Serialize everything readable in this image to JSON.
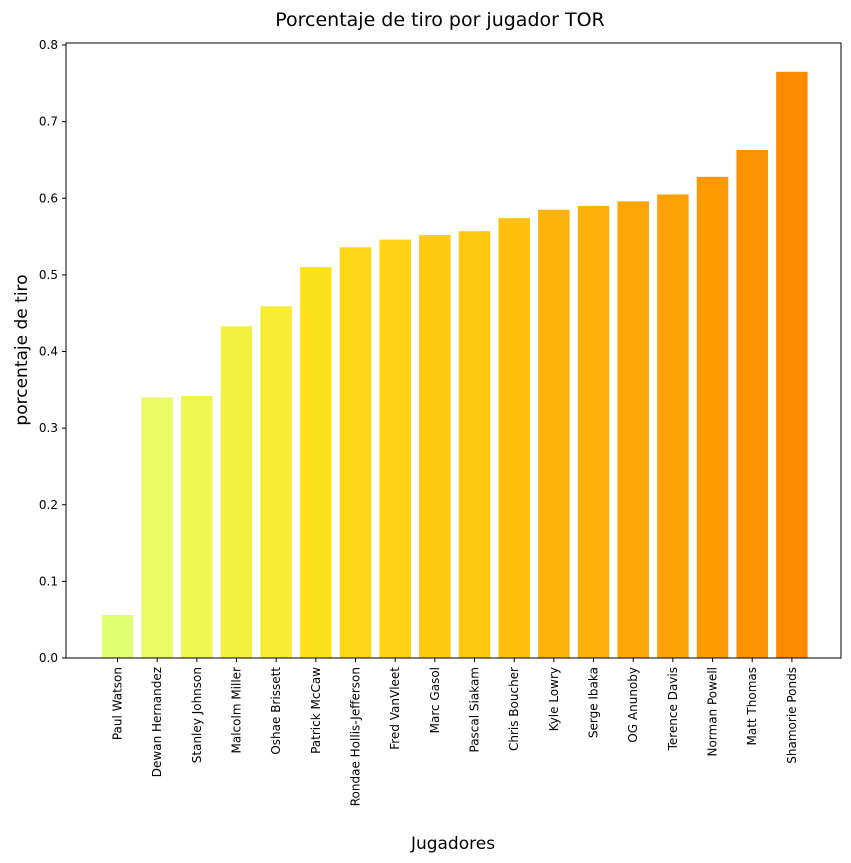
{
  "chart_data": {
    "type": "bar",
    "title": "Porcentaje de tiro por jugador TOR",
    "xlabel": "Jugadores",
    "ylabel": "porcentaje de tiro",
    "ylim": [
      0,
      0.8
    ],
    "yticks": [
      "0.0",
      "0.1",
      "0.2",
      "0.3",
      "0.4",
      "0.5",
      "0.6",
      "0.7",
      "0.8"
    ],
    "grid": false,
    "categories": [
      "Paul Watson",
      "Dewan Hernandez",
      "Stanley Johnson",
      "Malcolm Miller",
      "Oshae Brissett",
      "Patrick McCaw",
      "Rondae Hollis-Jefferson",
      "Fred VanVleet",
      "Marc Gasol",
      "Pascal Siakam",
      "Chris Boucher",
      "Kyle Lowry",
      "Serge Ibaka",
      "OG Anunoby",
      "Terence Davis",
      "Norman Powell",
      "Matt Thomas",
      "Shamorie Ponds"
    ],
    "values": [
      0.056,
      0.34,
      0.342,
      0.433,
      0.459,
      0.51,
      0.536,
      0.546,
      0.552,
      0.557,
      0.574,
      0.585,
      0.59,
      0.596,
      0.605,
      0.628,
      0.663,
      0.765
    ],
    "colors": [
      "#E0FF72",
      "#E9FB63",
      "#EFF551",
      "#F3F13F",
      "#F6EB35",
      "#FDE21B",
      "#FDD716",
      "#FED313",
      "#FECB10",
      "#FEC80E",
      "#FDC10D",
      "#FDB40A",
      "#FDB10A",
      "#FDA606",
      "#FDA206",
      "#FC9A04",
      "#FC9302",
      "#FC8A00"
    ]
  }
}
